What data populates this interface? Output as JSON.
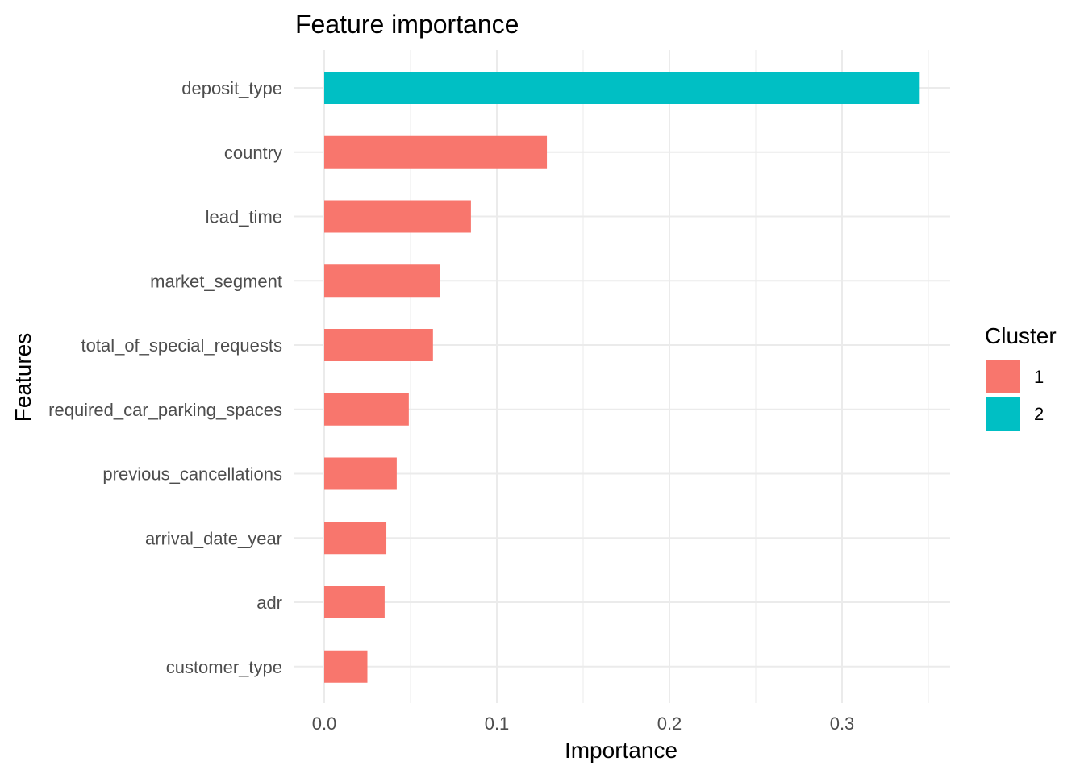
{
  "chart_data": {
    "type": "bar",
    "orientation": "horizontal",
    "title": "Feature importance",
    "xlabel": "Importance",
    "ylabel": "Features",
    "xlim": [
      0,
      0.35
    ],
    "xticks": [
      0.0,
      0.1,
      0.2,
      0.3
    ],
    "xtick_labels": [
      "0.0",
      "0.1",
      "0.2",
      "0.3"
    ],
    "grid": true,
    "legend": {
      "title": "Cluster",
      "placement": "right",
      "entries": [
        {
          "label": "1",
          "color": "#F8766D"
        },
        {
          "label": "2",
          "color": "#00BFC4"
        }
      ]
    },
    "categories": [
      "deposit_type",
      "country",
      "lead_time",
      "market_segment",
      "total_of_special_requests",
      "required_car_parking_spaces",
      "previous_cancellations",
      "arrival_date_year",
      "adr",
      "customer_type"
    ],
    "values": [
      0.345,
      0.129,
      0.085,
      0.067,
      0.063,
      0.049,
      0.042,
      0.036,
      0.035,
      0.025
    ],
    "clusters": [
      "2",
      "1",
      "1",
      "1",
      "1",
      "1",
      "1",
      "1",
      "1",
      "1"
    ]
  }
}
